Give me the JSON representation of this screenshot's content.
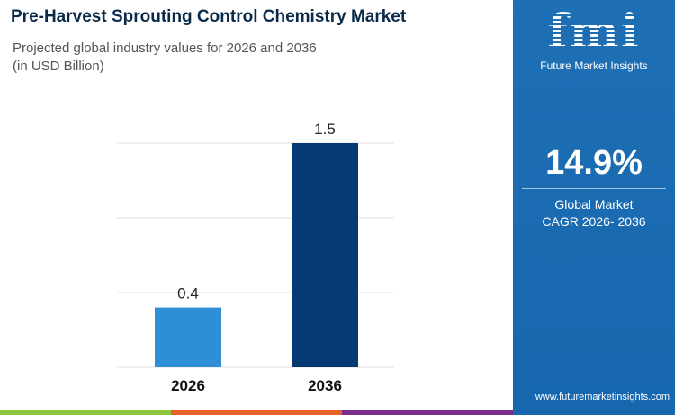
{
  "title": "Pre-Harvest Sprouting Control Chemistry Market",
  "subtitle": "Projected global industry values for 2026 and 2036",
  "unit": "(in USD Billion)",
  "chart_data": {
    "type": "bar",
    "categories": [
      "2026",
      "2036"
    ],
    "values": [
      0.4,
      1.5
    ],
    "data_labels": [
      "0.4",
      "1.5"
    ],
    "ylim": [
      0,
      1.5
    ],
    "grid": true,
    "colors": [
      "#2e8fd6",
      "#063a73"
    ]
  },
  "panel": {
    "logo_text": "fmi",
    "brand": "Future Market Insights",
    "cagr_value": "14.9%",
    "cagr_label_line1": "Global Market",
    "cagr_label_line2": "CAGR 2026- 2036",
    "website": "www.futuremarketinsights.com",
    "background": "#1a6cb0"
  },
  "footer_colors": [
    "#8dc63f",
    "#e8612c",
    "#7b2d8b"
  ]
}
